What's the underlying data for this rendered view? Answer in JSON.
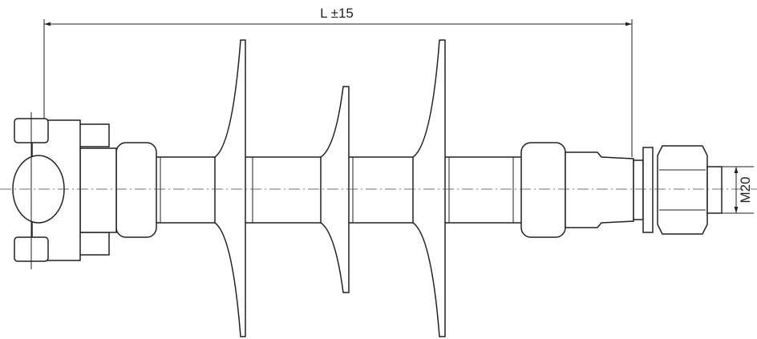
{
  "dimensions": {
    "length": "L ±15",
    "thread": "M20"
  }
}
